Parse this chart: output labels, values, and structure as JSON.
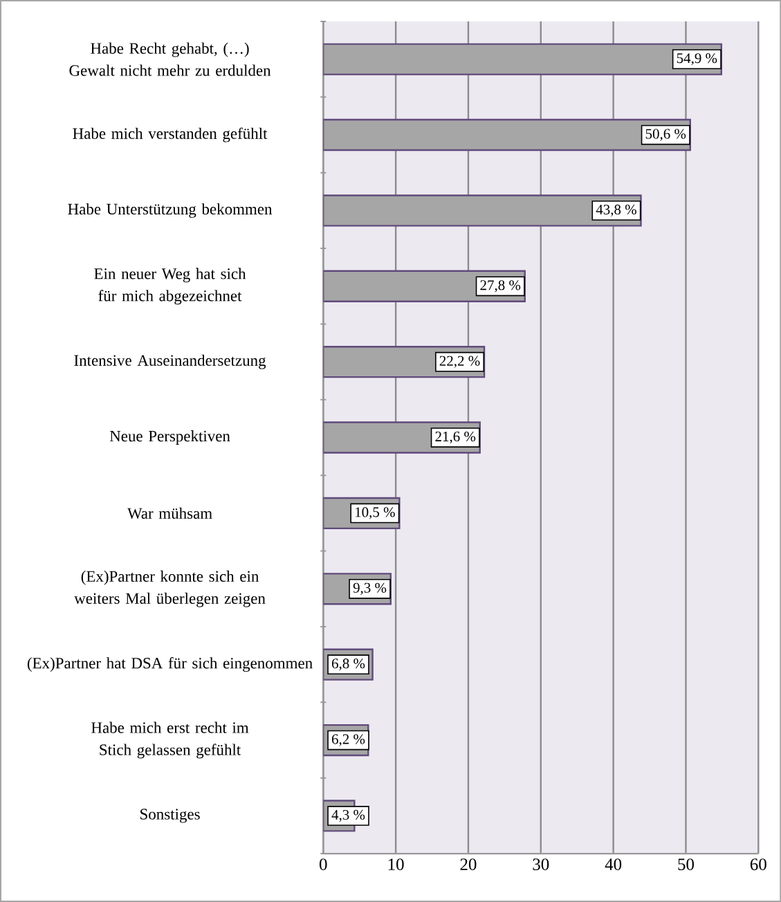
{
  "chart_data": {
    "type": "bar",
    "orientation": "horizontal",
    "categories": [
      "Habe Recht gehabt, (…) Gewalt nicht mehr zu erdulden",
      "Habe mich verstanden gefühlt",
      "Habe Unterstützung bekommen",
      "Ein neuer Weg hat sich für mich abgezeichnet",
      "Intensive Auseinandersetzung",
      "Neue Perspektiven",
      "War mühsam",
      "(Ex)Partner konnte sich ein weiters Mal überlegen zeigen",
      "(Ex)Partner hat DSA für sich eingenommen",
      "Habe mich erst recht im Stich gelassen gefühlt",
      "Sonstiges"
    ],
    "values": [
      54.9,
      50.6,
      43.8,
      27.8,
      22.2,
      21.6,
      10.5,
      9.3,
      6.8,
      6.2,
      4.3
    ],
    "value_labels": [
      "54,9 %",
      "50,6 %",
      "43,8 %",
      "27,8 %",
      "22,2 %",
      "21,6 %",
      "10,5 %",
      "9,3 %",
      "6,8 %",
      "6,2 %",
      "4,3 %"
    ],
    "color": "#a6a6a6",
    "xlim": [
      0,
      60
    ],
    "xticks": [
      0,
      10,
      20,
      30,
      40,
      50,
      60
    ],
    "grid": "x"
  }
}
